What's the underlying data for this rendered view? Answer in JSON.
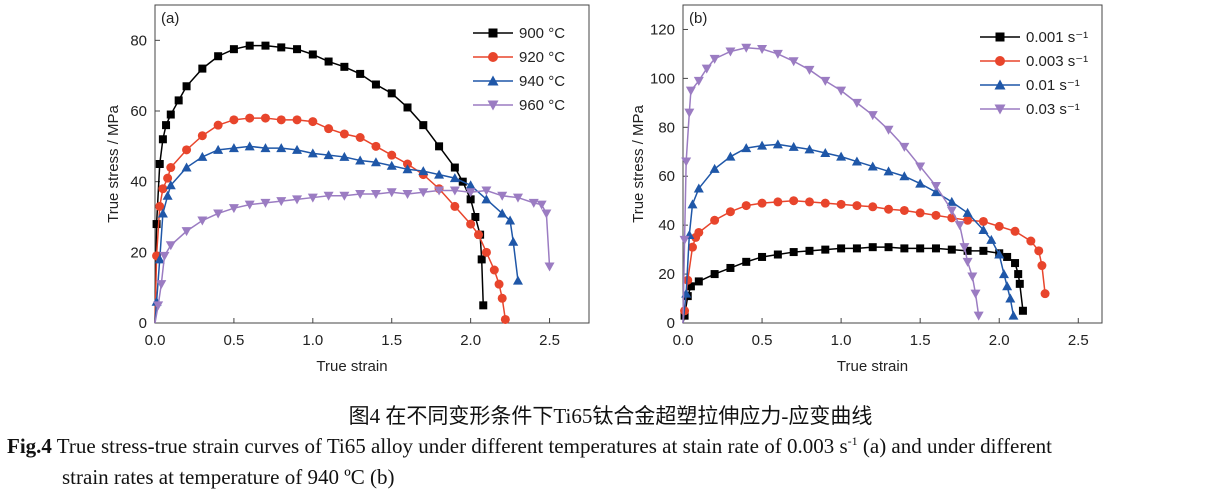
{
  "chart_data": [
    {
      "type": "line",
      "panel_label": "(a)",
      "xlabel": "True strain",
      "ylabel": "True stress / MPa",
      "xlim": [
        0,
        2.75
      ],
      "ylim": [
        0,
        90
      ],
      "xticks": [
        "0.0",
        "0.5",
        "1.0",
        "1.5",
        "2.0",
        "2.5"
      ],
      "yticks": [
        "0",
        "20",
        "40",
        "60",
        "80"
      ],
      "grid": false,
      "legend_position": "top-right",
      "series": [
        {
          "name": "900 °C",
          "color": "#000000",
          "marker": "square",
          "x": [
            0,
            0.01,
            0.03,
            0.05,
            0.07,
            0.1,
            0.15,
            0.2,
            0.3,
            0.4,
            0.5,
            0.6,
            0.7,
            0.8,
            0.9,
            1.0,
            1.1,
            1.2,
            1.3,
            1.4,
            1.5,
            1.6,
            1.7,
            1.8,
            1.9,
            1.95,
            2.0,
            2.03,
            2.06,
            2.07,
            2.08
          ],
          "y": [
            0,
            28,
            45,
            52,
            56,
            59,
            63,
            67,
            72,
            75.5,
            77.5,
            78.5,
            78.5,
            78,
            77.5,
            76,
            74,
            72.5,
            70.5,
            67.5,
            65,
            61,
            56,
            50,
            44,
            40,
            35,
            30,
            25,
            18,
            5
          ]
        },
        {
          "name": "920 °C",
          "color": "#e8452c",
          "marker": "circle",
          "x": [
            0,
            0.01,
            0.03,
            0.05,
            0.08,
            0.1,
            0.2,
            0.3,
            0.4,
            0.5,
            0.6,
            0.7,
            0.8,
            0.9,
            1.0,
            1.1,
            1.2,
            1.3,
            1.4,
            1.5,
            1.6,
            1.7,
            1.8,
            1.9,
            2.0,
            2.05,
            2.1,
            2.15,
            2.18,
            2.2,
            2.22
          ],
          "y": [
            0,
            19,
            33,
            38,
            41,
            44,
            49,
            53,
            56,
            57.5,
            58,
            58,
            57.5,
            57.5,
            57,
            55,
            53.5,
            52.5,
            50,
            47.5,
            45,
            42,
            38,
            33,
            28,
            25,
            20,
            15,
            11,
            7,
            1
          ]
        },
        {
          "name": "940 °C",
          "color": "#1f57a8",
          "marker": "triangle-up",
          "x": [
            0,
            0.01,
            0.03,
            0.05,
            0.08,
            0.1,
            0.2,
            0.3,
            0.4,
            0.5,
            0.6,
            0.7,
            0.8,
            0.9,
            1.0,
            1.1,
            1.2,
            1.3,
            1.4,
            1.5,
            1.6,
            1.7,
            1.8,
            1.9,
            2.0,
            2.1,
            2.2,
            2.25,
            2.27,
            2.3
          ],
          "y": [
            0,
            6,
            18,
            31,
            36,
            39,
            44,
            47,
            49,
            49.5,
            50,
            49.5,
            49.5,
            49,
            48,
            47.5,
            47,
            46,
            45.5,
            44.5,
            43.5,
            43,
            42,
            41,
            39,
            35,
            31,
            29,
            23,
            12
          ]
        },
        {
          "name": "960 °C",
          "color": "#9b7cc2",
          "marker": "triangle-down",
          "x": [
            0,
            0.02,
            0.04,
            0.06,
            0.1,
            0.2,
            0.3,
            0.4,
            0.5,
            0.6,
            0.7,
            0.8,
            0.9,
            1.0,
            1.1,
            1.2,
            1.3,
            1.4,
            1.5,
            1.6,
            1.7,
            1.8,
            1.9,
            2.0,
            2.1,
            2.2,
            2.3,
            2.4,
            2.45,
            2.48,
            2.5
          ],
          "y": [
            0,
            5,
            11,
            19,
            22,
            26,
            29,
            31,
            32.5,
            33.5,
            34,
            34.5,
            35,
            35.5,
            36,
            36,
            36.5,
            36.5,
            37,
            36.5,
            37,
            37.5,
            37.5,
            37,
            37.5,
            36,
            35.5,
            34,
            33.5,
            31,
            16
          ]
        }
      ]
    },
    {
      "type": "line",
      "panel_label": "(b)",
      "xlabel": "True strain",
      "ylabel": "True stress / MPa",
      "xlim": [
        0,
        2.65
      ],
      "ylim": [
        0,
        130
      ],
      "xticks": [
        "0.0",
        "0.5",
        "1.0",
        "1.5",
        "2.0",
        "2.5"
      ],
      "yticks": [
        "0",
        "20",
        "40",
        "60",
        "80",
        "100",
        "120"
      ],
      "grid": false,
      "legend_position": "top-right",
      "series": [
        {
          "name": "0.001 s⁻¹",
          "color": "#000000",
          "marker": "square",
          "x": [
            0,
            0.01,
            0.03,
            0.05,
            0.1,
            0.2,
            0.3,
            0.4,
            0.5,
            0.6,
            0.7,
            0.8,
            0.9,
            1.0,
            1.1,
            1.2,
            1.3,
            1.4,
            1.5,
            1.6,
            1.7,
            1.8,
            1.9,
            2.0,
            2.05,
            2.1,
            2.12,
            2.13,
            2.15
          ],
          "y": [
            0,
            3,
            11,
            15,
            17,
            20,
            22.5,
            25,
            27,
            28,
            29,
            29.5,
            30,
            30.5,
            30.5,
            31,
            31,
            30.5,
            30.5,
            30.5,
            30,
            29.5,
            29.5,
            28.5,
            27,
            24.5,
            20,
            16,
            5
          ]
        },
        {
          "name": "0.003 s⁻¹",
          "color": "#e8452c",
          "marker": "circle",
          "x": [
            0,
            0.01,
            0.03,
            0.06,
            0.08,
            0.1,
            0.2,
            0.3,
            0.4,
            0.5,
            0.6,
            0.7,
            0.8,
            0.9,
            1.0,
            1.1,
            1.2,
            1.3,
            1.4,
            1.5,
            1.6,
            1.7,
            1.8,
            1.9,
            2.0,
            2.1,
            2.2,
            2.25,
            2.27,
            2.29
          ],
          "y": [
            0,
            5,
            17.5,
            31,
            35,
            37,
            42,
            45.5,
            48,
            49,
            49.5,
            50,
            49.5,
            49,
            48.5,
            48,
            47.5,
            46.5,
            46,
            45,
            44,
            43,
            42,
            41.5,
            39.5,
            37.5,
            33.5,
            29.5,
            23.5,
            12
          ]
        },
        {
          "name": "0.01 s⁻¹",
          "color": "#1f57a8",
          "marker": "triangle-up",
          "x": [
            0,
            0.02,
            0.04,
            0.06,
            0.1,
            0.2,
            0.3,
            0.4,
            0.5,
            0.6,
            0.7,
            0.8,
            0.9,
            1.0,
            1.1,
            1.2,
            1.3,
            1.4,
            1.5,
            1.6,
            1.7,
            1.8,
            1.9,
            1.95,
            2.0,
            2.03,
            2.05,
            2.07,
            2.09
          ],
          "y": [
            0,
            12,
            36,
            48.5,
            55,
            63,
            68,
            71.5,
            72.5,
            73,
            72,
            71,
            69.5,
            68,
            66,
            64,
            62,
            60,
            57,
            53.5,
            49.5,
            45,
            38,
            34,
            28,
            20,
            15,
            10,
            3
          ]
        },
        {
          "name": "0.03 s⁻¹",
          "color": "#9b7cc2",
          "marker": "triangle-down",
          "x": [
            0,
            0.01,
            0.02,
            0.04,
            0.05,
            0.1,
            0.15,
            0.2,
            0.3,
            0.4,
            0.5,
            0.6,
            0.7,
            0.8,
            0.9,
            1.0,
            1.1,
            1.2,
            1.3,
            1.4,
            1.5,
            1.6,
            1.7,
            1.75,
            1.78,
            1.8,
            1.83,
            1.85,
            1.87
          ],
          "y": [
            0,
            34,
            66,
            86,
            95,
            99,
            104,
            108,
            111,
            112.5,
            112,
            110,
            107,
            103.5,
            99,
            95,
            90,
            85,
            79,
            72,
            64,
            56,
            46,
            40,
            31,
            25,
            19,
            12,
            3
          ]
        }
      ]
    }
  ],
  "caption": {
    "cn": "图4 在不同变形条件下Ti65钛合金超塑拉伸应力-应变曲线",
    "en_label": "Fig.4",
    "en_part1": " True stress-true strain curves of Ti65 alloy under different temperatures at stain rate of 0.003 s",
    "en_sup": "-1",
    "en_part2": " (a) and under different",
    "en_line2": "strain rates at temperature of 940 ºC  (b)"
  }
}
